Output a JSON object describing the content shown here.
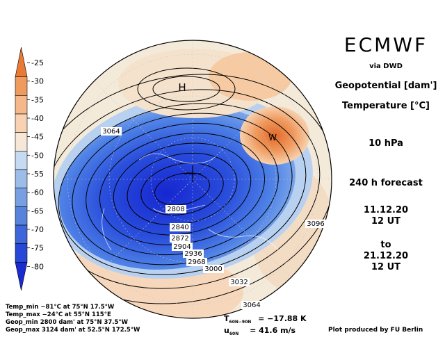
{
  "header": {
    "brand": "ECMWF",
    "via": "via DWD",
    "var1": "Geopotential [dam']",
    "var2": "Temperature [°C]",
    "level": "10 hPa",
    "forecast": "240 h forecast",
    "init_date": "11.12.20",
    "init_time": "12 UT",
    "to": "to",
    "valid_date": "21.12.20",
    "valid_time": "12 UT"
  },
  "footer": {
    "temp_min": "Temp_min −81°C at 75°N 17.5°W",
    "temp_max": "Temp_max −24°C at 55°N 115°E",
    "geop_min": "Geop_min 2800 dam' at 75°N 37.5°W",
    "geop_max": "Geop_max 3124 dam' at 52.5°N 172.5°W",
    "t_label": "T",
    "t_sub": "60N−90N",
    "t_value": "= −17.88 K",
    "u_label": "u",
    "u_sub": "60N",
    "u_value": "= 41.6 m/s",
    "credit": "Plot produced by FU Berlin"
  },
  "map_labels": {
    "high": "H",
    "warm": "W"
  },
  "colors": {
    "cold_deep": "#1a2fd6",
    "cold_mid": "#4a79e6",
    "cold_light": "#a8c6ee",
    "neutral": "#f4efe6",
    "warm_light": "#f6d2b0",
    "warm_mid": "#ef9e60",
    "warm_deep": "#e06a2a",
    "contour": "#000000",
    "coast": "#ffffff"
  },
  "chart_data": {
    "type": "heatmap",
    "title": "Geopotential [dam'] / Temperature [°C] 10 hPa",
    "colorbar": {
      "ticks": [
        -25,
        -30,
        -35,
        -40,
        -45,
        -50,
        -55,
        -60,
        -65,
        -70,
        -75,
        -80
      ],
      "colors": [
        "#e87a36",
        "#f09b5e",
        "#f5b88a",
        "#f8d2b2",
        "#f6e7d6",
        "#c6daf2",
        "#9dbde9",
        "#779fe1",
        "#5783dd",
        "#3c66d9",
        "#2747d6",
        "#1a2bcf"
      ]
    },
    "contour_labels": [
      3064,
      2808,
      2840,
      2872,
      2904,
      2936,
      2968,
      3000,
      3032,
      3064,
      3096
    ],
    "extremes": {
      "temp_min_c": -81,
      "temp_max_c": -24,
      "geop_min_dam": 2800,
      "geop_max_dam": 3124
    }
  }
}
